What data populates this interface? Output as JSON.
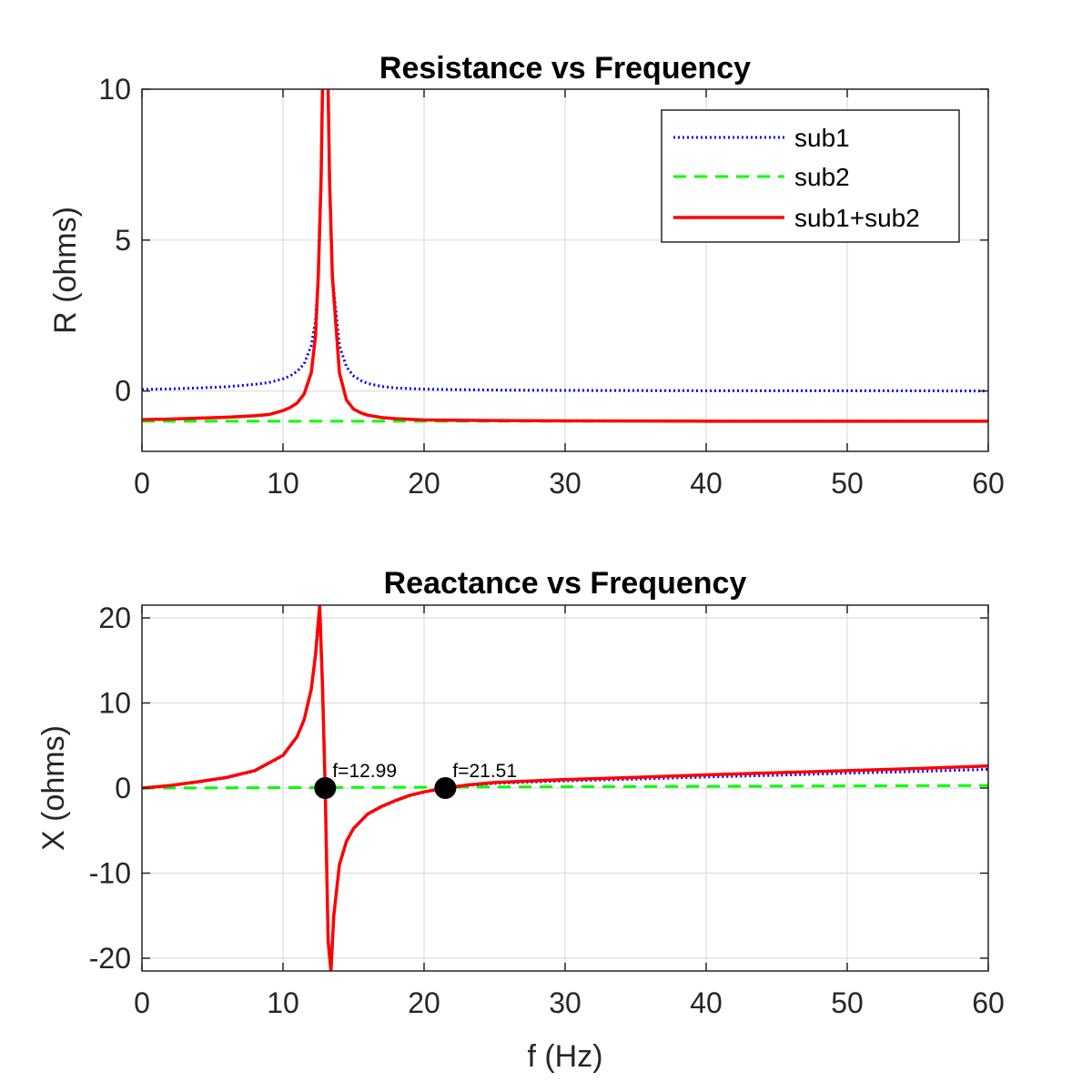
{
  "chart_data": [
    {
      "type": "line",
      "title": "Resistance vs Frequency",
      "xlabel": "",
      "ylabel": "R (ohms)",
      "xlim": [
        0,
        60
      ],
      "ylim": [
        -2,
        10
      ],
      "xticks": [
        0,
        10,
        20,
        30,
        40,
        50,
        60
      ],
      "yticks": [
        0,
        5,
        10
      ],
      "grid": true,
      "legend": {
        "placement": "top-right",
        "entries": [
          "sub1",
          "sub2",
          "sub1+sub2"
        ]
      },
      "series": [
        {
          "name": "sub1",
          "color": "#0000ff",
          "style": "dotted",
          "x": [
            0,
            2,
            4,
            6,
            8,
            9,
            10,
            10.5,
            11,
            11.5,
            12,
            12.3,
            12.5,
            12.7,
            12.8,
            12.99,
            13.2,
            13.3,
            13.5,
            14,
            14.5,
            15,
            15.5,
            16,
            17,
            18,
            20,
            25,
            30,
            40,
            50,
            60
          ],
          "y": [
            0.05,
            0.07,
            0.1,
            0.14,
            0.22,
            0.28,
            0.4,
            0.5,
            0.65,
            0.9,
            1.5,
            2.3,
            3.8,
            7,
            10,
            12,
            10,
            7,
            3.8,
            1.5,
            0.8,
            0.5,
            0.35,
            0.25,
            0.15,
            0.1,
            0.06,
            0.03,
            0.02,
            0.01,
            0.01,
            0.0
          ]
        },
        {
          "name": "sub2",
          "color": "#00ff00",
          "style": "dashed",
          "x": [
            0,
            60
          ],
          "y": [
            -1.0,
            -1.0
          ]
        },
        {
          "name": "sub1+sub2",
          "color": "#ff0000",
          "style": "solid",
          "x": [
            0,
            2,
            4,
            6,
            8,
            9,
            10,
            10.5,
            11,
            11.5,
            12,
            12.3,
            12.5,
            12.7,
            12.8,
            12.99,
            13.2,
            13.3,
            13.5,
            14,
            14.5,
            15,
            15.5,
            16,
            17,
            18,
            20,
            25,
            30,
            40,
            50,
            60
          ],
          "y": [
            -0.95,
            -0.93,
            -0.9,
            -0.87,
            -0.82,
            -0.78,
            -0.65,
            -0.55,
            -0.4,
            -0.1,
            0.6,
            1.8,
            3.8,
            7,
            10,
            12,
            10,
            7,
            3.8,
            0.6,
            -0.3,
            -0.6,
            -0.72,
            -0.8,
            -0.88,
            -0.92,
            -0.96,
            -0.98,
            -0.99,
            -1.0,
            -1.0,
            -1.0
          ]
        }
      ]
    },
    {
      "type": "line",
      "title": "Reactance vs Frequency",
      "xlabel": "f (Hz)",
      "ylabel": "X (ohms)",
      "xlim": [
        0,
        60
      ],
      "ylim": [
        -21.5,
        21.5
      ],
      "xticks": [
        0,
        10,
        20,
        30,
        40,
        50,
        60
      ],
      "yticks": [
        -20,
        -10,
        0,
        10,
        20
      ],
      "grid": true,
      "series": [
        {
          "name": "sub1",
          "color": "#0000ff",
          "style": "dotted",
          "x": [
            0,
            2,
            4,
            6,
            8,
            10,
            11,
            11.5,
            12,
            12.3,
            12.6,
            12.8,
            12.99,
            13.2,
            13.4,
            13.6,
            14,
            14.5,
            15,
            16,
            17,
            18,
            19,
            20,
            21.51,
            23,
            25,
            30,
            35,
            40,
            45,
            50,
            55,
            60
          ],
          "y": [
            0,
            0.3,
            0.7,
            1.2,
            2.0,
            3.8,
            6.0,
            8.0,
            11.5,
            15.5,
            20.5,
            12,
            0,
            -18,
            -21.5,
            -15,
            -9,
            -6.3,
            -4.8,
            -3.1,
            -2.2,
            -1.5,
            -0.9,
            -0.5,
            0,
            0.3,
            0.55,
            0.85,
            1.05,
            1.3,
            1.5,
            1.75,
            1.95,
            2.2
          ]
        },
        {
          "name": "sub2",
          "color": "#00ff00",
          "style": "dashed",
          "x": [
            0,
            10,
            20,
            30,
            40,
            50,
            60
          ],
          "y": [
            0,
            0.05,
            0.1,
            0.15,
            0.2,
            0.25,
            0.3
          ]
        },
        {
          "name": "sub1+sub2",
          "color": "#ff0000",
          "style": "solid",
          "x": [
            0,
            2,
            4,
            6,
            8,
            10,
            11,
            11.5,
            12,
            12.3,
            12.6,
            12.8,
            12.99,
            13.2,
            13.4,
            13.6,
            14,
            14.5,
            15,
            16,
            17,
            18,
            19,
            20,
            21.51,
            23,
            25,
            30,
            35,
            40,
            45,
            50,
            55,
            60
          ],
          "y": [
            0,
            0.3,
            0.75,
            1.25,
            2.05,
            3.85,
            6.05,
            8.05,
            11.6,
            15.6,
            21.5,
            12,
            0,
            -18,
            -21.5,
            -15,
            -9,
            -6.25,
            -4.75,
            -3.05,
            -2.15,
            -1.45,
            -0.85,
            -0.45,
            0,
            0.35,
            0.65,
            1.0,
            1.25,
            1.55,
            1.8,
            2.05,
            2.3,
            2.6
          ]
        }
      ],
      "markers": [
        {
          "x": 12.99,
          "y": 0,
          "label": "f=12.99",
          "color": "#000000"
        },
        {
          "x": 21.51,
          "y": 0,
          "label": "f=21.51",
          "color": "#000000"
        }
      ]
    }
  ]
}
